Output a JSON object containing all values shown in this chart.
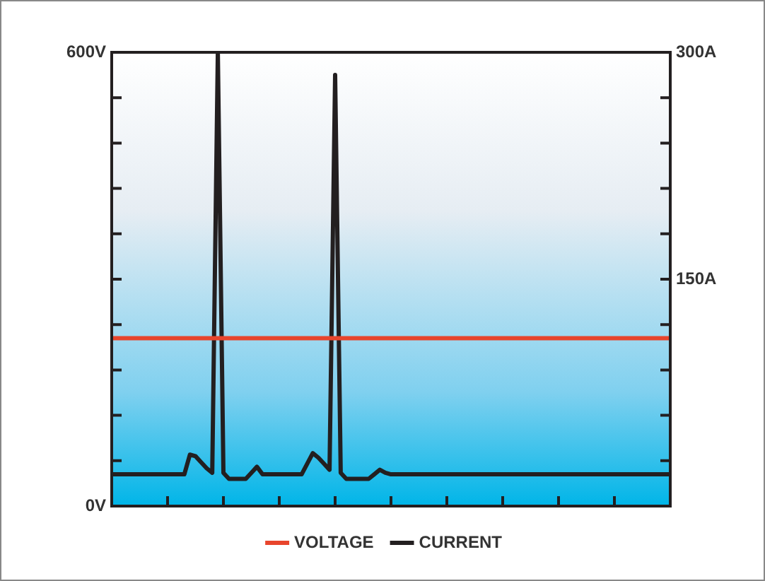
{
  "chart_data": {
    "type": "line",
    "categories": [
      null,
      null,
      null,
      null,
      null,
      null,
      null,
      null,
      null,
      null,
      null,
      null,
      null,
      null,
      null,
      null,
      null,
      null,
      null,
      null,
      null,
      null,
      null,
      null,
      null,
      null,
      null,
      null,
      null,
      null,
      null,
      null,
      null,
      null,
      null,
      null,
      null,
      null,
      null,
      null,
      null,
      null,
      null,
      null,
      null,
      null,
      null,
      null,
      null,
      null,
      null,
      null,
      null,
      null,
      null,
      null,
      null,
      null,
      null,
      null,
      null,
      null,
      null,
      null,
      null,
      null,
      null,
      null,
      null,
      null,
      null,
      null,
      null,
      null,
      null,
      null,
      null,
      null,
      null,
      null,
      null,
      null,
      null,
      null,
      null,
      null,
      null,
      null,
      null,
      null,
      null,
      null,
      null,
      null,
      null,
      null,
      null,
      null,
      null,
      null,
      null
    ],
    "ylim": [
      0,
      600
    ],
    "yticks": [
      {
        "value": 0,
        "label": "0V"
      },
      {
        "value": 60,
        "label": null
      },
      {
        "value": 120,
        "label": null
      },
      {
        "value": 180,
        "label": null
      },
      {
        "value": 240,
        "label": null
      },
      {
        "value": 300,
        "label": null
      },
      {
        "value": 360,
        "label": null
      },
      {
        "value": 420,
        "label": null
      },
      {
        "value": 480,
        "label": null
      },
      {
        "value": 540,
        "label": null
      },
      {
        "value": 600,
        "label": "600V"
      }
    ],
    "y2lim": [
      0,
      300
    ],
    "y2ticks": [
      {
        "value": 0,
        "label": null
      },
      {
        "value": 30,
        "label": null
      },
      {
        "value": 60,
        "label": null
      },
      {
        "value": 90,
        "label": null
      },
      {
        "value": 120,
        "label": null
      },
      {
        "value": 150,
        "label": "150A"
      },
      {
        "value": 180,
        "label": null
      },
      {
        "value": 210,
        "label": null
      },
      {
        "value": 240,
        "label": null
      },
      {
        "value": 270,
        "label": null
      },
      {
        "value": 300,
        "label": "300A"
      }
    ],
    "legend": "bottom",
    "marker": "none",
    "line_style": "solid",
    "series": [
      {
        "name": "VOLTAGE",
        "color": "#e8452c",
        "values": [
          222,
          222,
          222,
          222,
          222,
          222,
          222,
          222,
          222,
          222,
          222,
          222,
          222,
          222,
          222,
          222,
          222,
          222,
          222,
          222,
          222,
          222,
          222,
          222,
          222,
          222,
          222,
          222,
          222,
          222,
          222,
          222,
          222,
          222,
          222,
          222,
          222,
          222,
          222,
          222,
          222,
          222,
          222,
          222,
          222,
          222,
          222,
          222,
          222,
          222,
          222,
          222,
          222,
          222,
          222,
          222,
          222,
          222,
          222,
          222,
          222,
          222,
          222,
          222,
          222,
          222,
          222,
          222,
          222,
          222,
          222,
          222,
          222,
          222,
          222,
          222,
          222,
          222,
          222,
          222,
          222,
          222,
          222,
          222,
          222,
          222,
          222,
          222,
          222,
          222,
          222,
          222,
          222,
          222,
          222,
          222,
          222,
          222,
          222,
          222,
          222
        ]
      },
      {
        "name": "CURRENT",
        "color": "#231f20",
        "axis": "y2",
        "values": [
          21,
          21,
          21,
          21,
          21,
          21,
          21,
          21,
          21,
          21,
          21,
          21,
          21,
          21,
          34,
          33,
          29,
          25,
          22,
          300,
          22,
          18,
          18,
          18,
          18,
          22,
          26,
          21,
          21,
          21,
          21,
          21,
          21,
          21,
          21,
          28,
          35,
          32,
          28,
          24,
          285,
          22,
          18,
          18,
          18,
          18,
          18,
          21,
          24,
          22,
          21,
          21,
          21,
          21,
          21,
          21,
          21,
          21,
          21,
          21,
          21,
          21,
          21,
          21,
          21,
          21,
          21,
          21,
          21,
          21,
          21,
          21,
          21,
          21,
          21,
          21,
          21,
          21,
          21,
          21,
          21,
          21,
          21,
          21,
          21,
          21,
          21,
          21,
          21,
          21,
          21,
          21,
          21,
          21,
          21,
          21,
          21,
          21,
          21,
          21,
          21
        ]
      }
    ]
  }
}
